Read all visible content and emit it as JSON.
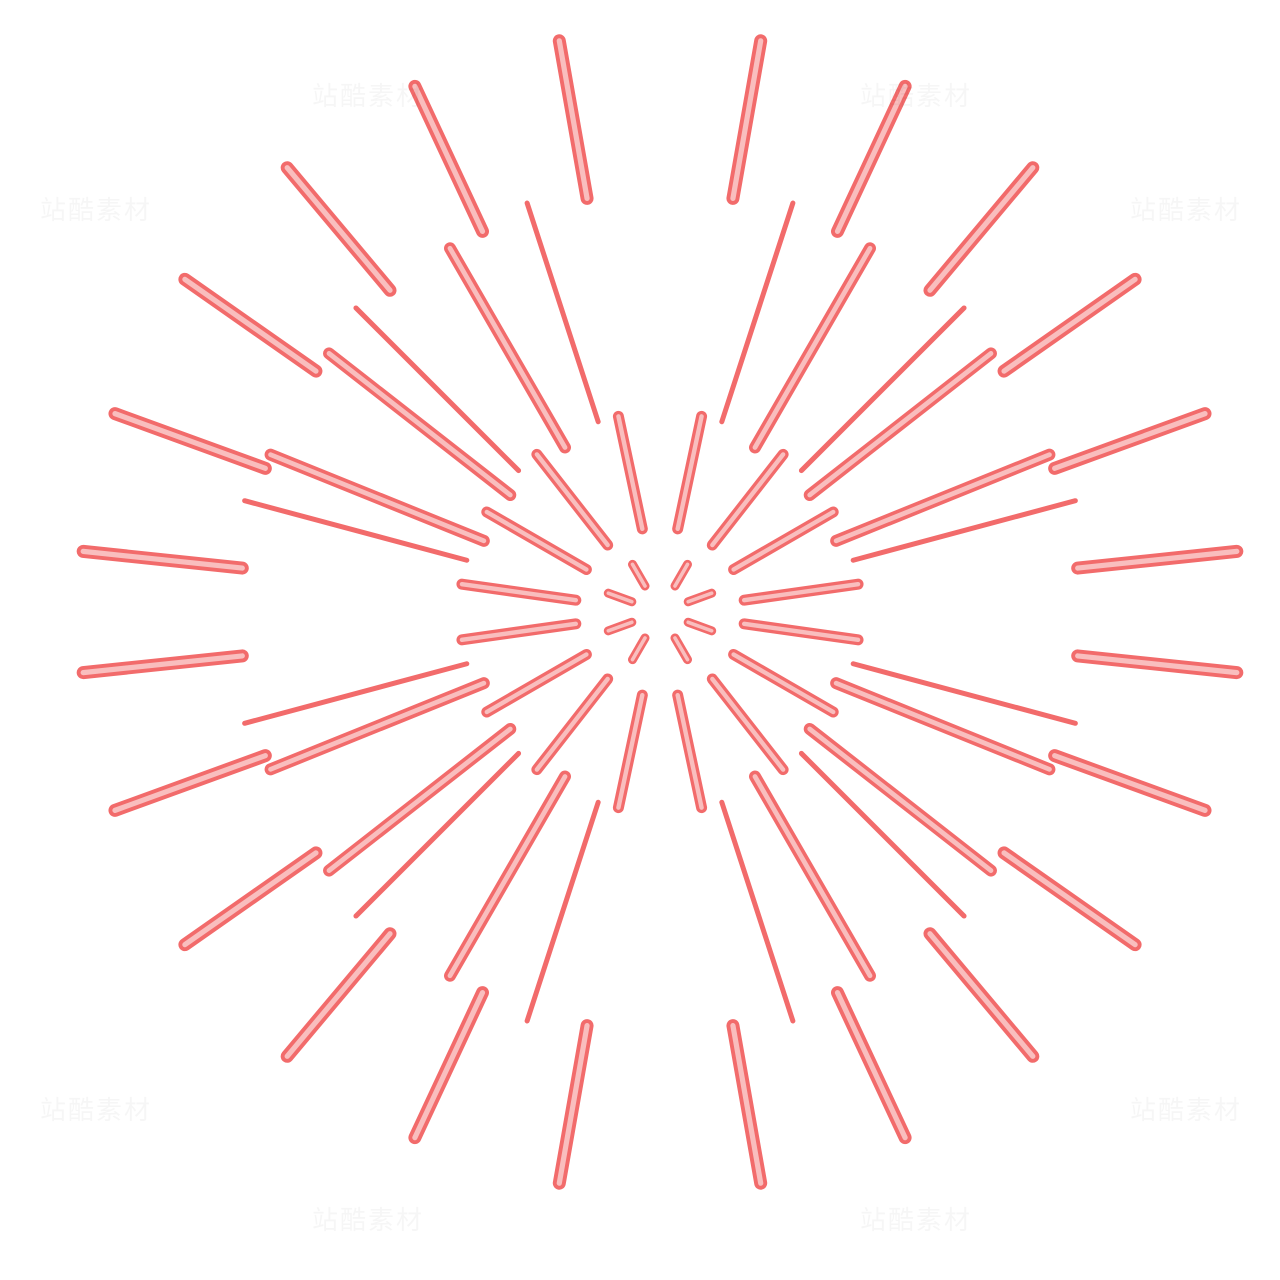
{
  "illustration": {
    "subject": "firework-burst",
    "stroke_color": "#f26b6b",
    "highlight_color": "#fbd3d3",
    "background": "#ffffff"
  },
  "watermark": {
    "text": "站酷素材"
  }
}
